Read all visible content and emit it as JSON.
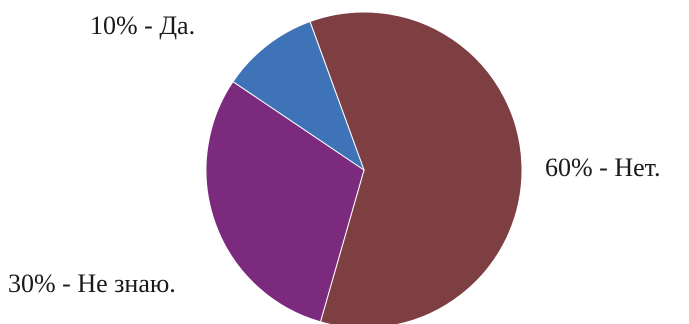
{
  "chart_data": {
    "type": "pie",
    "title": "",
    "start_angle_deg": -20,
    "direction": "clockwise",
    "slices": [
      {
        "value": 60,
        "label": "60% - Нет.",
        "color": "#7E3F43"
      },
      {
        "value": 30,
        "label": "30% - Не знаю.",
        "color": "#7B2A7E"
      },
      {
        "value": 10,
        "label": "10% - Да.",
        "color": "#3F73B8"
      }
    ]
  }
}
